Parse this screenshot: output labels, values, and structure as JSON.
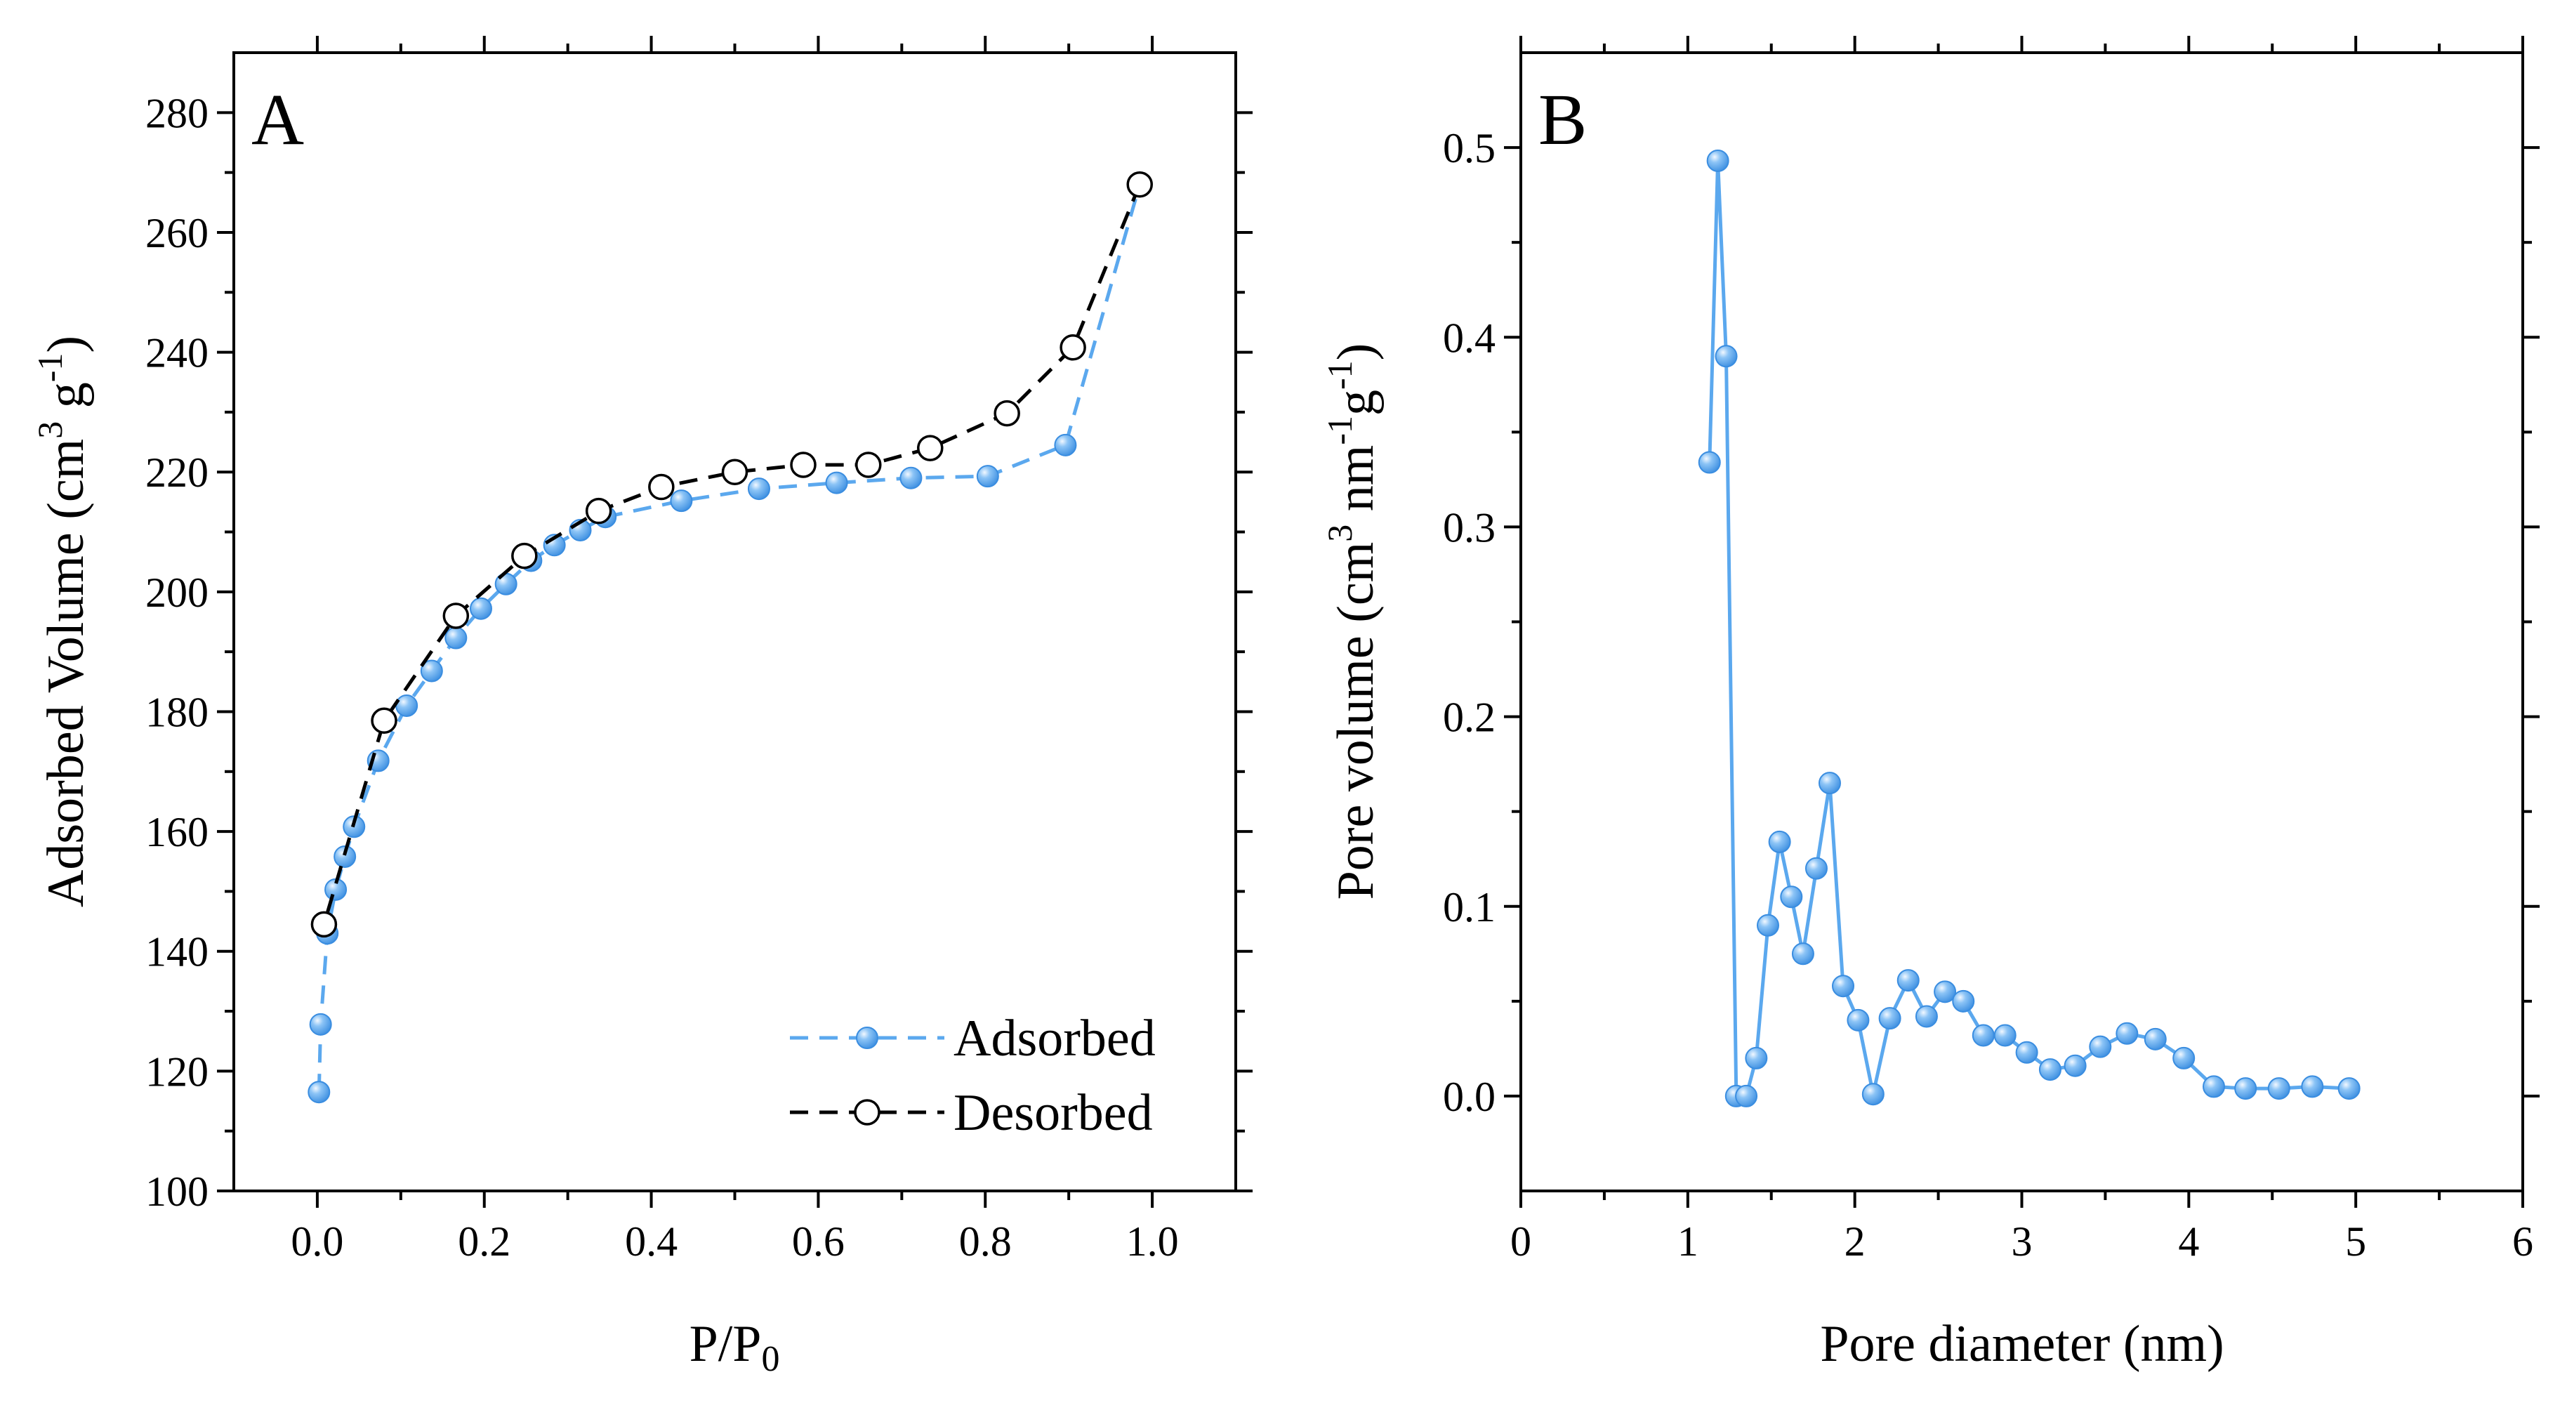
{
  "colors": {
    "adsorbed": "#5ba8ee",
    "adsorbed_marker": "#6fb3f3",
    "desorbed_line": "#000000",
    "desorbed_marker_fill": "#ffffff",
    "pore": "#5ba8ee"
  },
  "chart_data": [
    {
      "type": "line",
      "panel_label": "A",
      "xlabel": "P/P",
      "xlabel_sub": "0",
      "ylabel_parts": [
        "Adsorbed Volume (cm",
        "3",
        " g",
        "-1",
        ")"
      ],
      "xlim": [
        -0.1,
        1.1
      ],
      "ylim": [
        100,
        290
      ],
      "xticks": [
        0.0,
        0.2,
        0.4,
        0.6,
        0.8,
        1.0
      ],
      "xtick_labels": [
        "0.0",
        "0.2",
        "0.4",
        "0.6",
        "0.8",
        "1.0"
      ],
      "yticks": [
        100,
        120,
        140,
        160,
        180,
        200,
        220,
        240,
        260,
        280
      ],
      "ytick_labels": [
        "100",
        "120",
        "140",
        "160",
        "180",
        "200",
        "220",
        "240",
        "260",
        "280"
      ],
      "legend_position": "bottom-right",
      "series": [
        {
          "name": "Adsorbed",
          "line": "dashed",
          "marker": "filled-circle",
          "x": [
            0.002,
            0.004,
            0.012,
            0.022,
            0.033,
            0.044,
            0.073,
            0.107,
            0.137,
            0.166,
            0.196,
            0.226,
            0.256,
            0.284,
            0.315,
            0.345,
            0.436,
            0.529,
            0.622,
            0.711,
            0.803,
            0.896,
            0.985
          ],
          "y": [
            116.5,
            127.8,
            143.0,
            150.3,
            155.8,
            160.8,
            171.8,
            181.0,
            186.8,
            192.3,
            197.2,
            201.3,
            205.2,
            207.8,
            210.3,
            212.5,
            215.2,
            217.2,
            218.2,
            219.0,
            219.3,
            224.5,
            268.0
          ]
        },
        {
          "name": "Desorbed",
          "line": "dashed",
          "marker": "open-circle",
          "x": [
            0.985,
            0.905,
            0.826,
            0.734,
            0.66,
            0.582,
            0.5,
            0.412,
            0.337,
            0.248,
            0.166,
            0.08,
            0.008
          ],
          "y": [
            268.0,
            240.8,
            229.8,
            224.0,
            221.2,
            221.2,
            220.0,
            217.5,
            213.5,
            206.0,
            196.0,
            178.5,
            144.5
          ]
        }
      ]
    },
    {
      "type": "line",
      "panel_label": "B",
      "xlabel": "Pore diameter (nm)",
      "ylabel_parts": [
        "Pore volume (cm",
        "3",
        " nm",
        "-1",
        "g",
        "-1",
        ")"
      ],
      "xlim": [
        0,
        6
      ],
      "ylim": [
        -0.05,
        0.55
      ],
      "xticks": [
        0,
        1,
        2,
        3,
        4,
        5,
        6
      ],
      "xtick_labels": [
        "0",
        "1",
        "2",
        "3",
        "4",
        "5",
        "6"
      ],
      "yticks": [
        0.0,
        0.1,
        0.2,
        0.3,
        0.4,
        0.5
      ],
      "ytick_labels": [
        "0.0",
        "0.1",
        "0.2",
        "0.3",
        "0.4",
        "0.5"
      ],
      "series": [
        {
          "name": "Pore volume",
          "line": "solid",
          "marker": "filled-circle",
          "x": [
            1.13,
            1.18,
            1.23,
            1.29,
            1.35,
            1.41,
            1.48,
            1.55,
            1.62,
            1.69,
            1.77,
            1.85,
            1.93,
            2.02,
            2.11,
            2.21,
            2.32,
            2.43,
            2.54,
            2.65,
            2.77,
            2.9,
            3.03,
            3.17,
            3.32,
            3.47,
            3.63,
            3.8,
            3.97,
            4.15,
            4.34,
            4.54,
            4.74,
            4.96
          ],
          "y": [
            0.334,
            0.493,
            0.39,
            0.0,
            0.0,
            0.02,
            0.09,
            0.134,
            0.105,
            0.075,
            0.12,
            0.165,
            0.058,
            0.04,
            0.001,
            0.041,
            0.061,
            0.042,
            0.055,
            0.05,
            0.032,
            0.032,
            0.023,
            0.014,
            0.016,
            0.026,
            0.033,
            0.03,
            0.02,
            0.005,
            0.004,
            0.004,
            0.005,
            0.004
          ]
        }
      ]
    }
  ]
}
